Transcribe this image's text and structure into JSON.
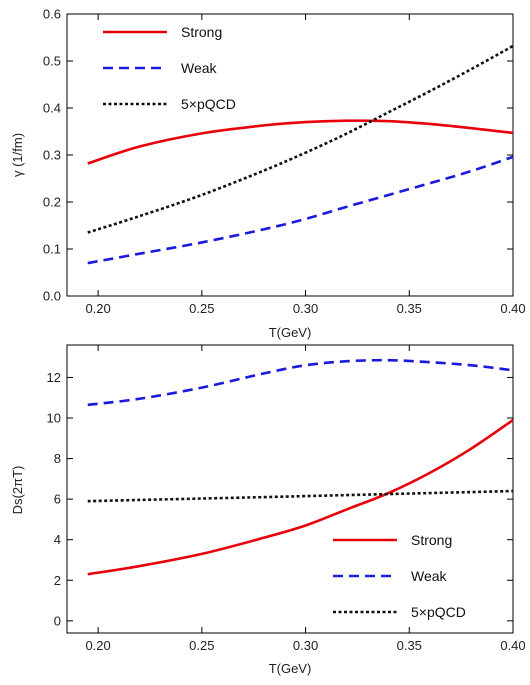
{
  "chart_data": [
    {
      "type": "line",
      "xlabel": "T(GeV)",
      "ylabel": "γ (1/fm)",
      "xlim": [
        0.185,
        0.4
      ],
      "ylim": [
        0,
        0.6
      ],
      "xticks": [
        "0.20",
        "0.25",
        "0.30",
        "0.35",
        "0.40"
      ],
      "xtick_values": [
        0.2,
        0.25,
        0.3,
        0.35,
        0.4
      ],
      "yticks": [
        "0.0",
        "0.1",
        "0.2",
        "0.3",
        "0.4",
        "0.5",
        "0.6"
      ],
      "ytick_values": [
        0,
        0.1,
        0.2,
        0.3,
        0.4,
        0.5,
        0.6
      ],
      "legend_position": "top-left",
      "series": [
        {
          "name": "Strong",
          "color": "#e8000b",
          "style": "solid",
          "x": [
            0.195,
            0.22,
            0.25,
            0.28,
            0.3,
            0.32,
            0.34,
            0.36,
            0.38,
            0.4
          ],
          "y": [
            0.282,
            0.318,
            0.346,
            0.363,
            0.37,
            0.373,
            0.372,
            0.366,
            0.357,
            0.347
          ]
        },
        {
          "name": "Weak",
          "color": "#1a1adc",
          "style": "dashed",
          "x": [
            0.195,
            0.22,
            0.25,
            0.28,
            0.3,
            0.32,
            0.34,
            0.36,
            0.38,
            0.4
          ],
          "y": [
            0.07,
            0.09,
            0.114,
            0.142,
            0.164,
            0.19,
            0.215,
            0.24,
            0.266,
            0.296
          ]
        },
        {
          "name": "5×pQCD",
          "color": "#111111",
          "style": "dotted",
          "x": [
            0.195,
            0.22,
            0.25,
            0.28,
            0.3,
            0.32,
            0.34,
            0.36,
            0.38,
            0.4
          ],
          "y": [
            0.135,
            0.17,
            0.215,
            0.267,
            0.305,
            0.346,
            0.391,
            0.436,
            0.483,
            0.532
          ]
        }
      ]
    },
    {
      "type": "line",
      "xlabel": "T(GeV)",
      "ylabel": "Ds(2πT)",
      "xlim": [
        0.185,
        0.4
      ],
      "ylim": [
        -0.6,
        13.6
      ],
      "xticks": [
        "0.20",
        "0.25",
        "0.30",
        "0.35",
        "0.40"
      ],
      "xtick_values": [
        0.2,
        0.25,
        0.3,
        0.35,
        0.4
      ],
      "yticks": [
        "0",
        "2",
        "4",
        "6",
        "8",
        "10",
        "12"
      ],
      "ytick_values": [
        0,
        2,
        4,
        6,
        8,
        10,
        12
      ],
      "legend_position": "bottom-right",
      "series": [
        {
          "name": "Strong",
          "color": "#e8000b",
          "style": "solid",
          "x": [
            0.195,
            0.22,
            0.25,
            0.28,
            0.3,
            0.32,
            0.34,
            0.36,
            0.38,
            0.4
          ],
          "y": [
            2.3,
            2.7,
            3.3,
            4.1,
            4.7,
            5.5,
            6.3,
            7.3,
            8.5,
            9.9
          ]
        },
        {
          "name": "Weak",
          "color": "#1a1adc",
          "style": "dashed",
          "x": [
            0.195,
            0.22,
            0.25,
            0.28,
            0.3,
            0.32,
            0.34,
            0.36,
            0.38,
            0.4
          ],
          "y": [
            10.65,
            10.95,
            11.5,
            12.2,
            12.6,
            12.8,
            12.85,
            12.75,
            12.6,
            12.35
          ]
        },
        {
          "name": "5×pQCD",
          "color": "#111111",
          "style": "dotted",
          "x": [
            0.195,
            0.22,
            0.25,
            0.28,
            0.3,
            0.32,
            0.34,
            0.36,
            0.38,
            0.4
          ],
          "y": [
            5.9,
            5.96,
            6.03,
            6.1,
            6.15,
            6.2,
            6.25,
            6.3,
            6.35,
            6.4
          ]
        }
      ]
    }
  ]
}
